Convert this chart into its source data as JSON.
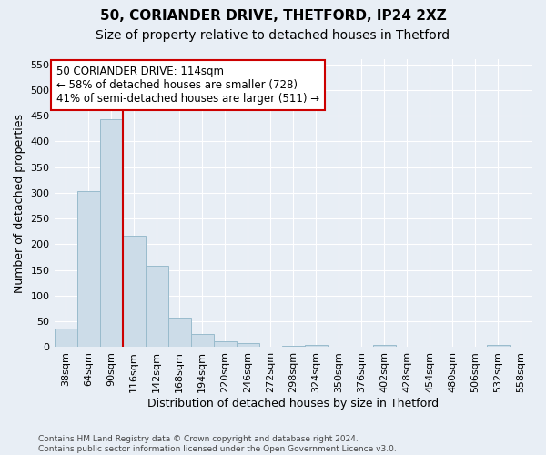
{
  "title_line1": "50, CORIANDER DRIVE, THETFORD, IP24 2XZ",
  "title_line2": "Size of property relative to detached houses in Thetford",
  "xlabel": "Distribution of detached houses by size in Thetford",
  "ylabel": "Number of detached properties",
  "footnote": "Contains HM Land Registry data © Crown copyright and database right 2024.\nContains public sector information licensed under the Open Government Licence v3.0.",
  "bin_labels": [
    "38sqm",
    "64sqm",
    "90sqm",
    "116sqm",
    "142sqm",
    "168sqm",
    "194sqm",
    "220sqm",
    "246sqm",
    "272sqm",
    "298sqm",
    "324sqm",
    "350sqm",
    "376sqm",
    "402sqm",
    "428sqm",
    "454sqm",
    "480sqm",
    "506sqm",
    "532sqm",
    "558sqm"
  ],
  "bar_values": [
    37,
    303,
    443,
    216,
    158,
    57,
    25,
    12,
    8,
    0,
    3,
    5,
    0,
    0,
    5,
    0,
    0,
    0,
    0,
    5,
    0
  ],
  "bar_color": "#ccdce8",
  "bar_edgecolor": "#99bbcc",
  "vline_x_index": 3.0,
  "vline_color": "#cc0000",
  "annotation_text": "50 CORIANDER DRIVE: 114sqm\n← 58% of detached houses are smaller (728)\n41% of semi-detached houses are larger (511) →",
  "annotation_box_color": "white",
  "annotation_box_edgecolor": "#cc0000",
  "ylim": [
    0,
    560
  ],
  "yticks": [
    0,
    50,
    100,
    150,
    200,
    250,
    300,
    350,
    400,
    450,
    500,
    550
  ],
  "bg_color": "#e8eef5",
  "plot_bg_color": "#e8eef5",
  "grid_color": "white",
  "title_fontsize": 11,
  "subtitle_fontsize": 10,
  "axis_label_fontsize": 9,
  "tick_fontsize": 8,
  "annotation_fontsize": 8.5,
  "footnote_fontsize": 6.5
}
